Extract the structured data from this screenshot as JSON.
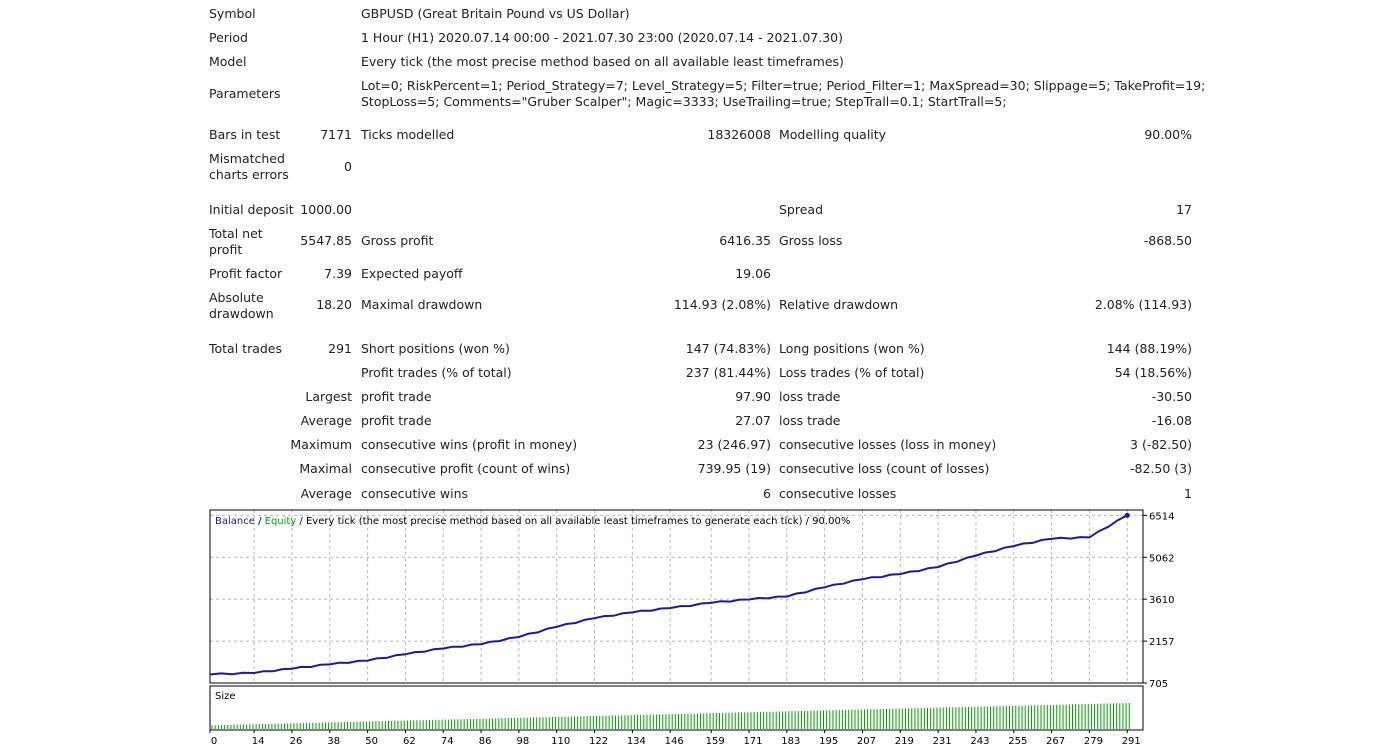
{
  "report": {
    "symbol_label": "Symbol",
    "symbol_value": "GBPUSD (Great Britain Pound vs US Dollar)",
    "period_label": "Period",
    "period_value": "1 Hour (H1) 2020.07.14 00:00 - 2021.07.30 23:00 (2020.07.14 - 2021.07.30)",
    "model_label": "Model",
    "model_value": "Every tick (the most precise method based on all available least timeframes)",
    "parameters_label": "Parameters",
    "parameters_line1": "Lot=0; RiskPercent=1; Period_Strategy=7; Level_Strategy=5; Filter=true; Period_Filter=1; MaxSpread=30; Slippage=5; TakeProfit=19;",
    "parameters_line2": "StopLoss=5; Comments=\"Gruber Scalper\"; Magic=3333; UseTrailing=true; StepTrall=0.1; StartTrall=5;",
    "bars_label": "Bars in test",
    "bars_value": "7171",
    "ticks_label": "Ticks modelled",
    "ticks_value": "18326008",
    "quality_label": "Modelling quality",
    "quality_value": "90.00%",
    "mismatch_label_1": "Mismatched",
    "mismatch_label_2": "charts errors",
    "mismatch_value": "0",
    "deposit_label": "Initial deposit",
    "deposit_value": "1000.00",
    "spread_label": "Spread",
    "spread_value": "17",
    "netprofit_label_1": "Total net",
    "netprofit_label_2": "profit",
    "netprofit_value": "5547.85",
    "grossprofit_label": "Gross profit",
    "grossprofit_value": "6416.35",
    "grossloss_label": "Gross loss",
    "grossloss_value": "-868.50",
    "pf_label": "Profit factor",
    "pf_value": "7.39",
    "payoff_label": "Expected payoff",
    "payoff_value": "19.06",
    "absdd_label_1": "Absolute",
    "absdd_label_2": "drawdown",
    "absdd_value": "18.20",
    "maxdd_label": "Maximal drawdown",
    "maxdd_value": "114.93 (2.08%)",
    "reldd_label": "Relative drawdown",
    "reldd_value": "2.08% (114.93)",
    "trades_label": "Total trades",
    "trades_value": "291",
    "short_label": "Short positions (won %)",
    "short_value": "147 (74.83%)",
    "long_label": "Long positions (won %)",
    "long_value": "144 (88.19%)",
    "profittrades_label": "Profit trades (% of total)",
    "profittrades_value": "237 (81.44%)",
    "losstrades_label": "Loss trades (% of total)",
    "losstrades_value": "54 (18.56%)",
    "largest_label": "Largest",
    "largest_profit_label": "profit trade",
    "largest_profit_value": "97.90",
    "largest_loss_label": "loss trade",
    "largest_loss_value": "-30.50",
    "average_label": "Average",
    "average_profit_label": "profit trade",
    "average_profit_value": "27.07",
    "average_loss_label": "loss trade",
    "average_loss_value": "-16.08",
    "maximum_label": "Maximum",
    "max_wins_label": "consecutive wins (profit in money)",
    "max_wins_value": "23 (246.97)",
    "max_losses_label": "consecutive losses (loss in money)",
    "max_losses_value": "3 (-82.50)",
    "maximal_label": "Maximal",
    "maximal_profit_label": "consecutive profit (count of wins)",
    "maximal_profit_value": "739.95 (19)",
    "maximal_loss_label": "consecutive loss (count of losses)",
    "maximal_loss_value": "-82.50 (3)",
    "average2_label": "Average",
    "avg_cons_wins_label": "consecutive wins",
    "avg_cons_wins_value": "6",
    "avg_cons_losses_label": "consecutive losses",
    "avg_cons_losses_value": "1"
  },
  "colors": {
    "balance": "#1a1aa0",
    "equity": "#00a000",
    "size_bars": "#00a000",
    "grid": "#b8b8b8",
    "axis": "#000000"
  },
  "chart_data": {
    "type": "line",
    "legend": {
      "balance": "Balance",
      "sep1": " / ",
      "equity": "Equity",
      "rest": " / Every tick (the most precise method based on all available least timeframes to generate each tick) / 90.00%"
    },
    "y_ticks": [
      705,
      2157,
      3610,
      5062,
      6514
    ],
    "ylim": [
      705,
      6700
    ],
    "x_ticks": [
      0,
      14,
      26,
      38,
      50,
      62,
      74,
      86,
      98,
      110,
      122,
      134,
      146,
      159,
      171,
      183,
      195,
      207,
      219,
      231,
      243,
      255,
      267,
      279,
      291
    ],
    "xlim": [
      0,
      296
    ],
    "series": [
      {
        "name": "Balance",
        "x": [
          0,
          14,
          26,
          38,
          50,
          62,
          74,
          86,
          98,
          110,
          122,
          134,
          146,
          159,
          171,
          183,
          195,
          207,
          219,
          231,
          243,
          255,
          267,
          279,
          291
        ],
        "values": [
          1000,
          1050,
          1200,
          1350,
          1480,
          1700,
          1900,
          2050,
          2300,
          2650,
          2950,
          3150,
          3300,
          3480,
          3600,
          3700,
          4020,
          4300,
          4480,
          4720,
          5120,
          5450,
          5700,
          5750,
          6514
        ]
      }
    ],
    "size_panel": {
      "label": "Size",
      "x_start": 0,
      "x_end": 291,
      "values_start": 0.01,
      "values_end": 0.07
    }
  }
}
